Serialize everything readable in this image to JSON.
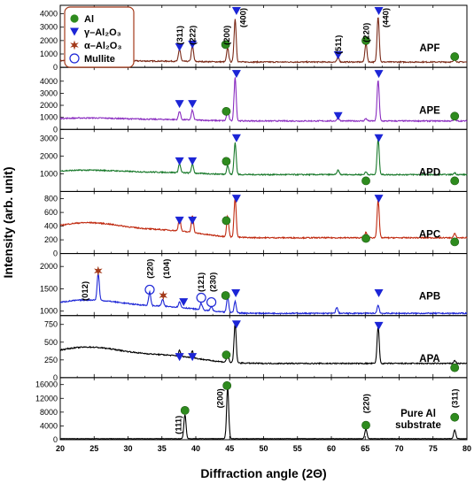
{
  "chart_data": {
    "type": "line",
    "xlabel": "Diffraction angle (2Θ)",
    "ylabel": "Intensity (arb. unit)",
    "xlim": [
      20,
      80
    ],
    "x_ticks": [
      "20",
      "25",
      "30",
      "35",
      "40",
      "45",
      "50",
      "55",
      "60",
      "65",
      "70",
      "75",
      "80"
    ],
    "legend": {
      "placement": "top-left",
      "entries": [
        {
          "label": "Al",
          "marker": "circle-filled",
          "color": "#2e8b1e"
        },
        {
          "label": "γ–Al₂O₃",
          "marker": "triangle-down",
          "color": "#1c25d6"
        },
        {
          "label": "α–Al₂O₃",
          "marker": "star",
          "color": "#a33a1a"
        },
        {
          "label": "Mullite",
          "marker": "circle-open",
          "color": "#1c25d6"
        }
      ]
    },
    "panels": [
      {
        "name": "APF",
        "color": "#7a2a18",
        "ylim": [
          0,
          4500
        ],
        "yticks": [
          "0",
          "1000",
          "2000",
          "3000",
          "4000"
        ],
        "baseline": 400,
        "background_amp": 120,
        "peaks": [
          {
            "x": 37.6,
            "h": 900
          },
          {
            "x": 39.5,
            "h": 1200
          },
          {
            "x": 44.7,
            "h": 1050
          },
          {
            "x": 45.8,
            "h": 3200
          },
          {
            "x": 61.0,
            "h": 350
          },
          {
            "x": 65.1,
            "h": 1400
          },
          {
            "x": 66.9,
            "h": 3400
          },
          {
            "x": 78.2,
            "h": 200
          }
        ],
        "markers": [
          {
            "type": "gamma",
            "x": 37.6,
            "y": 1500
          },
          {
            "type": "gamma",
            "x": 39.5,
            "y": 1700
          },
          {
            "type": "al",
            "x": 44.4,
            "y": 1700
          },
          {
            "type": "gamma",
            "x": 46.0,
            "y": 4200
          },
          {
            "type": "gamma",
            "x": 61.0,
            "y": 900
          },
          {
            "type": "al",
            "x": 65.1,
            "y": 2000
          },
          {
            "type": "gamma",
            "x": 67.0,
            "y": 4200
          },
          {
            "type": "al",
            "x": 78.2,
            "y": 800
          }
        ],
        "labels": [
          {
            "text": "(311)",
            "x": 37.6,
            "y": 2400
          },
          {
            "text": "(222)",
            "x": 39.5,
            "y": 2400
          },
          {
            "text": "(200)",
            "x": 44.5,
            "y": 2400
          },
          {
            "text": "(400)",
            "x": 46.9,
            "y": 3900
          },
          {
            "text": "(511)",
            "x": 61.0,
            "y": 1700
          },
          {
            "text": "(220)",
            "x": 65.1,
            "y": 2600
          },
          {
            "text": "(440)",
            "x": 68.0,
            "y": 3900
          }
        ]
      },
      {
        "name": "APE",
        "color": "#8a2cc0",
        "ylim": [
          0,
          5000
        ],
        "yticks": [
          "0",
          "1000",
          "2000",
          "3000",
          "4000"
        ],
        "baseline": 700,
        "background_amp": 250,
        "peaks": [
          {
            "x": 37.6,
            "h": 700
          },
          {
            "x": 39.5,
            "h": 800
          },
          {
            "x": 44.7,
            "h": 900
          },
          {
            "x": 45.8,
            "h": 3600
          },
          {
            "x": 61.0,
            "h": 300
          },
          {
            "x": 65.1,
            "h": 200
          },
          {
            "x": 66.9,
            "h": 3400
          },
          {
            "x": 78.2,
            "h": 150
          }
        ],
        "markers": [
          {
            "type": "gamma",
            "x": 37.6,
            "y": 2100
          },
          {
            "type": "gamma",
            "x": 39.5,
            "y": 2100
          },
          {
            "type": "al",
            "x": 44.5,
            "y": 1500
          },
          {
            "type": "gamma",
            "x": 46.0,
            "y": 4600
          },
          {
            "type": "gamma",
            "x": 61.0,
            "y": 1100
          },
          {
            "type": "gamma",
            "x": 67.0,
            "y": 4600
          },
          {
            "type": "al",
            "x": 78.2,
            "y": 1100
          }
        ],
        "labels": []
      },
      {
        "name": "APD",
        "color": "#1a7a2c",
        "ylim": [
          0,
          3400
        ],
        "yticks": [
          "1000",
          "2000",
          "3000"
        ],
        "baseline": 950,
        "background_amp": 250,
        "peaks": [
          {
            "x": 37.6,
            "h": 500
          },
          {
            "x": 39.5,
            "h": 500
          },
          {
            "x": 44.7,
            "h": 500
          },
          {
            "x": 45.8,
            "h": 1800
          },
          {
            "x": 61.0,
            "h": 250
          },
          {
            "x": 65.1,
            "h": 150
          },
          {
            "x": 66.9,
            "h": 2000
          },
          {
            "x": 78.2,
            "h": 100
          }
        ],
        "markers": [
          {
            "type": "gamma",
            "x": 37.6,
            "y": 1700
          },
          {
            "type": "gamma",
            "x": 39.5,
            "y": 1700
          },
          {
            "type": "al",
            "x": 44.5,
            "y": 1700
          },
          {
            "type": "gamma",
            "x": 46.0,
            "y": 3000
          },
          {
            "type": "al",
            "x": 65.1,
            "y": 600
          },
          {
            "type": "gamma",
            "x": 67.0,
            "y": 3000
          },
          {
            "type": "al",
            "x": 78.2,
            "y": 600
          }
        ],
        "labels": []
      },
      {
        "name": "APC",
        "color": "#c02a10",
        "ylim": [
          0,
          880
        ],
        "yticks": [
          "0",
          "200",
          "400",
          "600",
          "800"
        ],
        "baseline": 230,
        "background_amp": 220,
        "peaks": [
          {
            "x": 37.6,
            "h": 200
          },
          {
            "x": 39.5,
            "h": 250
          },
          {
            "x": 44.7,
            "h": 300
          },
          {
            "x": 45.8,
            "h": 580
          },
          {
            "x": 65.1,
            "h": 80
          },
          {
            "x": 66.9,
            "h": 550
          },
          {
            "x": 78.2,
            "h": 60
          }
        ],
        "markers": [
          {
            "type": "gamma",
            "x": 37.6,
            "y": 480
          },
          {
            "type": "gamma",
            "x": 39.5,
            "y": 480
          },
          {
            "type": "al",
            "x": 44.5,
            "y": 480
          },
          {
            "type": "gamma",
            "x": 46.0,
            "y": 800
          },
          {
            "type": "al",
            "x": 65.1,
            "y": 220
          },
          {
            "type": "gamma",
            "x": 67.0,
            "y": 800
          },
          {
            "type": "al",
            "x": 78.2,
            "y": 170
          }
        ],
        "labels": []
      },
      {
        "name": "APB",
        "color": "#1c25d6",
        "ylim": [
          900,
          2250
        ],
        "yticks": [
          "1000",
          "1500",
          "2000"
        ],
        "baseline": 950,
        "background_amp": 300,
        "peaks": [
          {
            "x": 25.6,
            "h": 600
          },
          {
            "x": 33.2,
            "h": 300
          },
          {
            "x": 35.1,
            "h": 150
          },
          {
            "x": 37.6,
            "h": 120
          },
          {
            "x": 40.8,
            "h": 150
          },
          {
            "x": 42.3,
            "h": 100
          },
          {
            "x": 44.7,
            "h": 350
          },
          {
            "x": 45.8,
            "h": 250
          },
          {
            "x": 60.8,
            "h": 130
          },
          {
            "x": 66.9,
            "h": 180
          }
        ],
        "markers": [
          {
            "type": "alpha",
            "x": 25.6,
            "y": 1900
          },
          {
            "type": "mullite",
            "x": 33.2,
            "y": 1480
          },
          {
            "type": "alpha",
            "x": 35.2,
            "y": 1350
          },
          {
            "type": "gamma",
            "x": 38.2,
            "y": 1200
          },
          {
            "type": "mullite",
            "x": 40.8,
            "y": 1300
          },
          {
            "type": "mullite",
            "x": 42.3,
            "y": 1200
          },
          {
            "type": "al",
            "x": 44.4,
            "y": 1350
          },
          {
            "type": "gamma",
            "x": 45.9,
            "y": 1400
          },
          {
            "type": "gamma",
            "x": 67.0,
            "y": 1400
          }
        ],
        "labels": [
          {
            "text": "(012)",
            "x": 23.6,
            "y": 1450
          },
          {
            "text": "(220)",
            "x": 33.2,
            "y": 1950
          },
          {
            "text": "(104)",
            "x": 35.6,
            "y": 1950
          },
          {
            "text": "(121)",
            "x": 40.7,
            "y": 1650
          },
          {
            "text": "(230)",
            "x": 42.5,
            "y": 1650
          }
        ]
      },
      {
        "name": "APA",
        "color": "#000000",
        "ylim": [
          0,
          850
        ],
        "yticks": [
          "0",
          "250",
          "500",
          "750"
        ],
        "baseline": 200,
        "background_amp": 230,
        "peaks": [
          {
            "x": 37.6,
            "h": 80
          },
          {
            "x": 39.5,
            "h": 100
          },
          {
            "x": 44.7,
            "h": 120
          },
          {
            "x": 45.8,
            "h": 560
          },
          {
            "x": 66.9,
            "h": 520
          },
          {
            "x": 78.2,
            "h": 40
          }
        ],
        "markers": [
          {
            "type": "gamma",
            "x": 37.6,
            "y": 290
          },
          {
            "type": "gamma",
            "x": 39.5,
            "y": 290
          },
          {
            "type": "al",
            "x": 44.5,
            "y": 320
          },
          {
            "type": "gamma",
            "x": 46.0,
            "y": 750
          },
          {
            "type": "gamma",
            "x": 67.0,
            "y": 730
          },
          {
            "type": "al",
            "x": 78.2,
            "y": 140
          }
        ],
        "labels": []
      },
      {
        "name": "Pure Al\nsubstrate",
        "color": "#000000",
        "ylim": [
          0,
          17500
        ],
        "yticks": [
          "0",
          "4000",
          "8000",
          "12000",
          "16000"
        ],
        "baseline": 300,
        "background_amp": 0,
        "peaks": [
          {
            "x": 38.4,
            "h": 7000
          },
          {
            "x": 44.7,
            "h": 15000
          },
          {
            "x": 65.1,
            "h": 2800
          },
          {
            "x": 78.2,
            "h": 2500
          }
        ],
        "markers": [
          {
            "type": "al",
            "x": 38.4,
            "y": 8500
          },
          {
            "type": "al",
            "x": 44.6,
            "y": 15700
          },
          {
            "type": "al",
            "x": 65.1,
            "y": 4200
          },
          {
            "type": "al",
            "x": 78.2,
            "y": 6500
          }
        ],
        "labels": [
          {
            "text": "(111)",
            "x": 37.4,
            "y": 4300
          },
          {
            "text": "(200)",
            "x": 43.5,
            "y": 12000
          },
          {
            "text": "(220)",
            "x": 65.1,
            "y": 10500
          },
          {
            "text": "(311)",
            "x": 78.2,
            "y": 12000
          }
        ]
      }
    ]
  }
}
